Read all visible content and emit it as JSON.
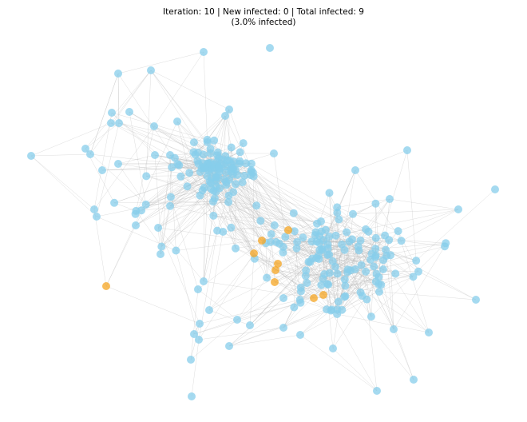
{
  "title": {
    "line1": "Iteration: 10 | New infected: 0 | Total infected: 9",
    "line2": "(3.0% infected)"
  }
}
